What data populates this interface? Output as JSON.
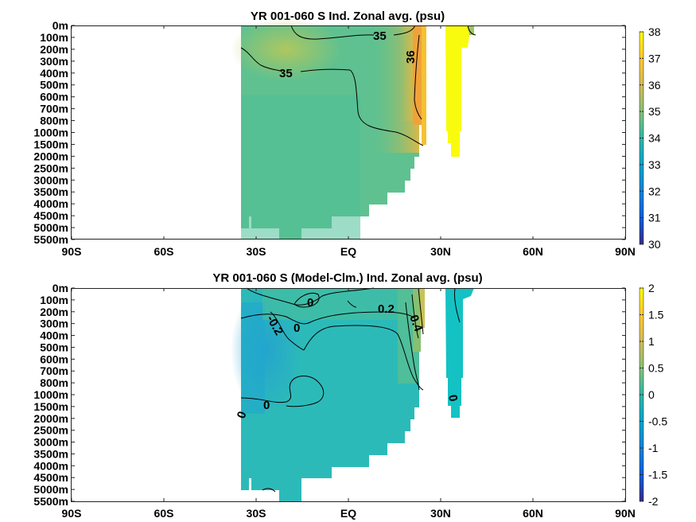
{
  "chart_data": [
    {
      "type": "heatmap",
      "title": "YR 001-060 S Ind. Zonal avg. (psu)",
      "x_ticks": [
        "90S",
        "60S",
        "30S",
        "EQ",
        "30N",
        "60N",
        "90N"
      ],
      "x_values": [
        -90,
        -60,
        -30,
        0,
        30,
        60,
        90
      ],
      "xlim": [
        -90,
        90
      ],
      "y_ticks": [
        "0m",
        "100m",
        "200m",
        "300m",
        "400m",
        "500m",
        "600m",
        "700m",
        "800m",
        "1000m",
        "1500m",
        "2000m",
        "2500m",
        "3000m",
        "3500m",
        "4000m",
        "4500m",
        "5000m",
        "5500m"
      ],
      "colorbar": {
        "ticks": [
          "38",
          "37",
          "36",
          "35",
          "34",
          "33",
          "32",
          "31",
          "30"
        ],
        "values": [
          38,
          37,
          36,
          35,
          34,
          33,
          32,
          31,
          30
        ],
        "colormap": "parula"
      },
      "contour_labels": [
        {
          "text": "35",
          "lat": 12,
          "level": 1
        },
        {
          "text": "36",
          "lat": 22,
          "level": 3
        },
        {
          "text": "35",
          "lat": -23,
          "level": 4
        }
      ],
      "grid": false
    },
    {
      "type": "heatmap",
      "title": "YR 001-060 S (Model-Clm.) Ind. Zonal avg. (psu)",
      "x_ticks": [
        "90S",
        "60S",
        "30S",
        "EQ",
        "30N",
        "60N",
        "90N"
      ],
      "x_values": [
        -90,
        -60,
        -30,
        0,
        30,
        60,
        90
      ],
      "xlim": [
        -90,
        90
      ],
      "y_ticks": [
        "0m",
        "100m",
        "200m",
        "300m",
        "400m",
        "500m",
        "600m",
        "700m",
        "800m",
        "1000m",
        "1500m",
        "2000m",
        "2500m",
        "3000m",
        "3500m",
        "4000m",
        "4500m",
        "5000m",
        "5500m"
      ],
      "colorbar": {
        "ticks": [
          "2",
          "1.5",
          "1",
          "0.5",
          "0",
          "-0.5",
          "-1",
          "-1.5",
          "-2"
        ],
        "values": [
          2,
          1.5,
          1,
          0.5,
          0,
          -0.5,
          -1,
          -1.5,
          -2
        ],
        "colormap": "parula"
      },
      "contour_labels": [
        {
          "text": "0",
          "lat": -15,
          "level": 1
        },
        {
          "text": "0.2",
          "lat": 13,
          "level": 1.5
        },
        {
          "text": "0.4",
          "lat": 21,
          "level": 3
        },
        {
          "text": "-0.2",
          "lat": -27,
          "level": 3
        },
        {
          "text": "0",
          "lat": -20,
          "level": 3.5
        },
        {
          "text": "0",
          "lat": -32,
          "level": 11
        },
        {
          "text": "0",
          "lat": -27,
          "level": 10.6
        },
        {
          "text": "0",
          "lat": 33,
          "level": 10.2
        }
      ],
      "grid": false
    }
  ]
}
